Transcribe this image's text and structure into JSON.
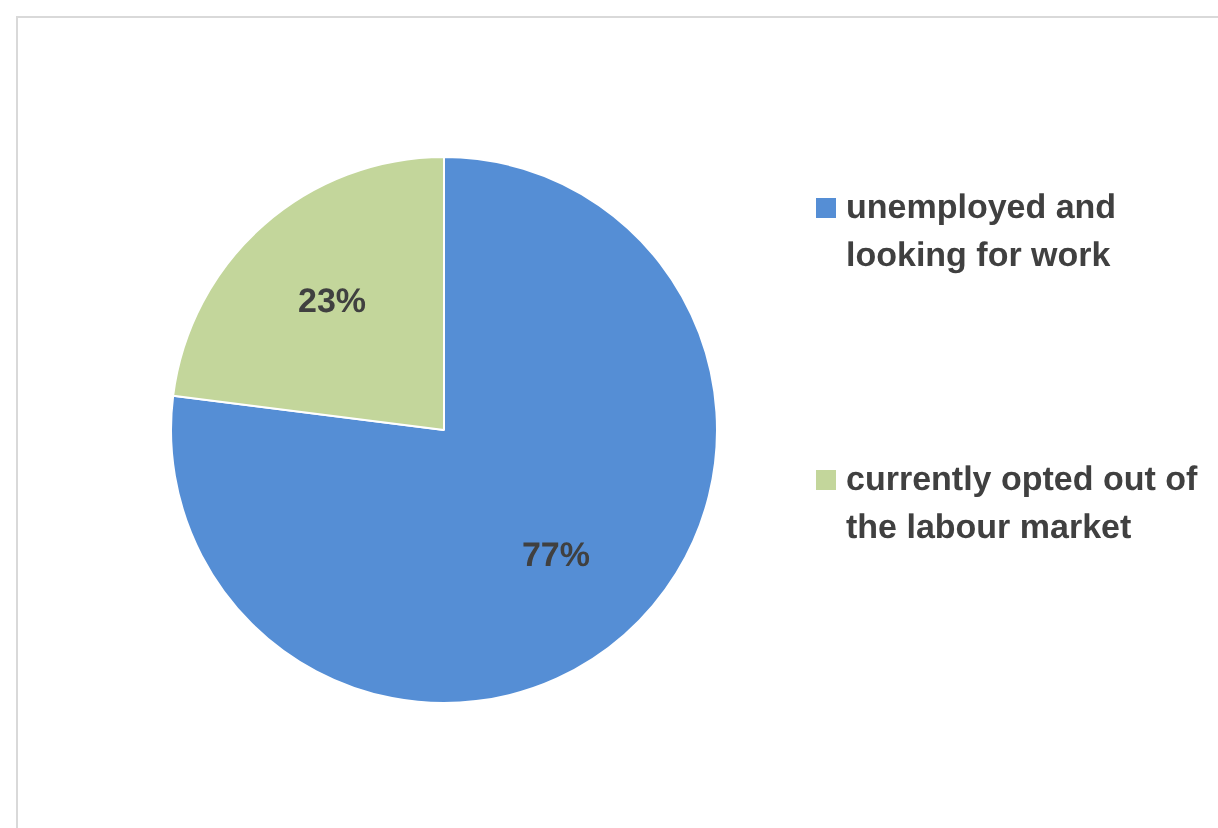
{
  "chart_data": {
    "type": "pie",
    "categories": [
      "unemployed and looking for work",
      "currently opted out of the labour market"
    ],
    "values": [
      77,
      23
    ],
    "colors": [
      "#558ed5",
      "#c3d69b"
    ],
    "value_labels": [
      "77%",
      "23%"
    ],
    "legend": "right"
  }
}
